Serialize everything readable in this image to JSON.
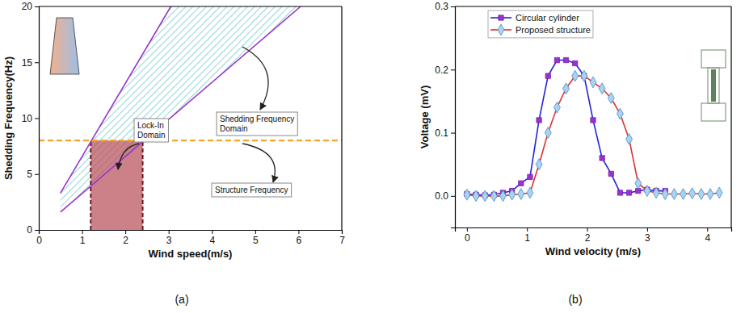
{
  "chart_data": [
    {
      "type": "line",
      "caption": "(a)",
      "x_label": "Wind speed(m/s)",
      "y_label": "Shedding Frequency(Hz)",
      "xlim": [
        0,
        7
      ],
      "xticks": [
        0,
        1,
        2,
        3,
        4,
        5,
        6,
        7
      ],
      "ylim": [
        0,
        20
      ],
      "yticks": [
        0,
        5,
        10,
        15,
        20
      ],
      "series": [
        {
          "x": [
            0.5,
            3.05
          ],
          "values": [
            3.3,
            20
          ],
          "color": "#9933cc"
        },
        {
          "x": [
            0.5,
            6.05
          ],
          "values": [
            1.6,
            20
          ],
          "color": "#9933cc"
        }
      ],
      "shedding_domain": {
        "label": "Shedding Frequency Domain",
        "color": "#52c0c0"
      },
      "structure_frequency": {
        "value": 8,
        "label": "Structure Frequency",
        "color": "#f5a623",
        "line_style": "dashed"
      },
      "lock_in": {
        "label": "Lock-In Domain",
        "x": [
          1.2,
          2.4
        ],
        "y": [
          0,
          8
        ],
        "color": "#b8505c"
      }
    },
    {
      "type": "line",
      "caption": "(b)",
      "x_label": "Wind velocity (m/s)",
      "y_label": "Voltage (mV)",
      "xlim": [
        -0.2,
        4.4
      ],
      "xticks": [
        0,
        1,
        2,
        3,
        4
      ],
      "ylim": [
        -0.05,
        0.3
      ],
      "yticks": [
        {
          "value": 0,
          "label": "0.0"
        },
        0.1,
        0.2,
        0.3
      ],
      "legend": "upper left",
      "series": [
        {
          "name": "Circular cylinder",
          "color": "#2222dd",
          "marker": "square",
          "x": [
            0,
            0.15,
            0.3,
            0.45,
            0.6,
            0.75,
            0.9,
            1.05,
            1.2,
            1.35,
            1.5,
            1.65,
            1.8,
            1.95,
            2.1,
            2.25,
            2.4,
            2.55,
            2.7,
            2.85,
            3.0,
            3.15,
            3.3
          ],
          "values": [
            0.003,
            0.002,
            0.001,
            0.002,
            0.005,
            0.008,
            0.02,
            0.03,
            0.12,
            0.19,
            0.215,
            0.215,
            0.21,
            0.19,
            0.12,
            0.06,
            0.035,
            0.005,
            0.005,
            0.008,
            0.01,
            0.008,
            0.008
          ]
        },
        {
          "name": "Proposed structure",
          "color": "#e03030",
          "marker": "diamond",
          "x": [
            0,
            0.15,
            0.3,
            0.45,
            0.6,
            0.75,
            0.9,
            1.05,
            1.2,
            1.35,
            1.5,
            1.65,
            1.8,
            1.95,
            2.1,
            2.25,
            2.4,
            2.55,
            2.7,
            2.85,
            3.0,
            3.15,
            3.3,
            3.45,
            3.6,
            3.75,
            3.9,
            4.05,
            4.2
          ],
          "values": [
            0.002,
            0,
            0,
            0,
            0,
            0.002,
            0.003,
            0.005,
            0.05,
            0.1,
            0.14,
            0.17,
            0.19,
            0.19,
            0.18,
            0.17,
            0.155,
            0.13,
            0.09,
            0.02,
            0.008,
            0.005,
            0.003,
            0.003,
            0.003,
            0.004,
            0.003,
            0.003,
            0.005
          ]
        }
      ]
    }
  ]
}
